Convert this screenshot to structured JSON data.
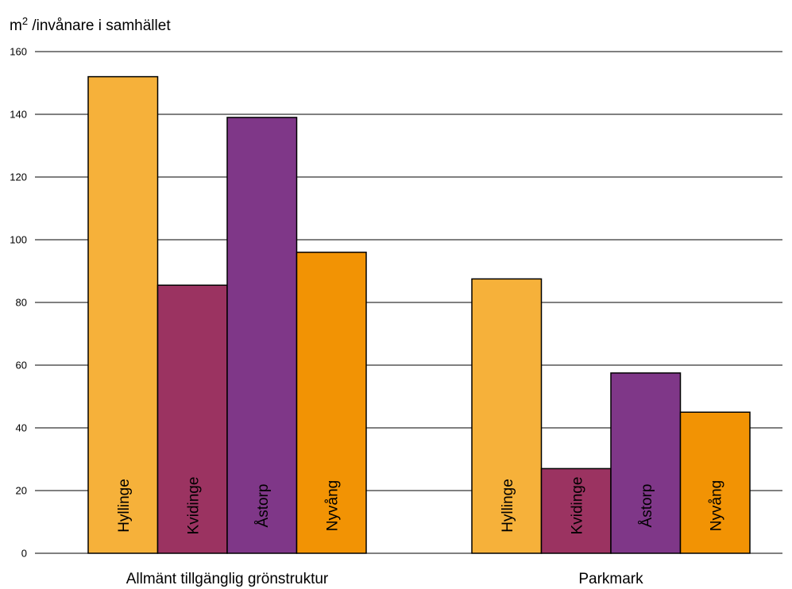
{
  "chart_data": {
    "type": "bar",
    "ylabel_base": "m",
    "ylabel_sup": "2",
    "ylabel_rest": " /invånare i samhället",
    "ylim": [
      0,
      160
    ],
    "yticks": [
      0,
      20,
      40,
      60,
      80,
      100,
      120,
      140,
      160
    ],
    "categories": [
      "Allmänt tillgänglig grönstruktur",
      "Parkmark"
    ],
    "series": [
      {
        "name": "Hyllinge",
        "color": "#F6B13A",
        "values": [
          152,
          87.5
        ]
      },
      {
        "name": "Kvidinge",
        "color": "#9B3361",
        "values": [
          85.5,
          27
        ]
      },
      {
        "name": "Åstorp",
        "color": "#7F3788",
        "values": [
          139,
          57.5
        ]
      },
      {
        "name": "Nyvång",
        "color": "#F29304",
        "values": [
          96,
          45
        ]
      }
    ],
    "grid": true,
    "legend": "none (series names written inside bars)"
  }
}
